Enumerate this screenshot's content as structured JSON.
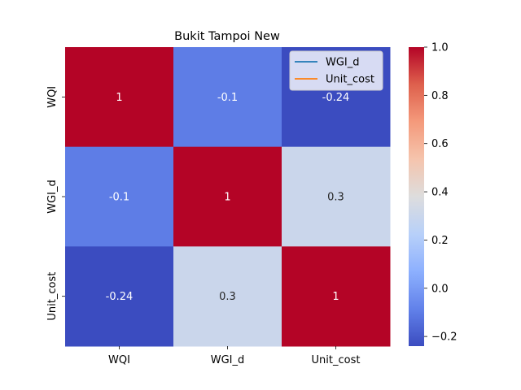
{
  "chart_data": {
    "type": "heatmap",
    "title": "Bukit Tampoi New",
    "xlabel": "",
    "ylabel": "",
    "row_labels": [
      "WQI",
      "WGI_d",
      "Unit_cost"
    ],
    "col_labels": [
      "WQI",
      "WGI_d",
      "Unit_cost"
    ],
    "values": [
      [
        1,
        -0.1,
        -0.24
      ],
      [
        -0.1,
        1,
        0.3
      ],
      [
        -0.24,
        0.3,
        1
      ]
    ],
    "annotations": [
      [
        "1",
        "-0.1",
        "-0.24"
      ],
      [
        "-0.1",
        "1",
        "0.3"
      ],
      [
        "-0.24",
        "0.3",
        "1"
      ]
    ],
    "colormap": "coolwarm",
    "vmin": -0.24,
    "vmax": 1.0,
    "colorbar": {
      "ticks": [
        -0.2,
        0.0,
        0.2,
        0.4,
        0.6,
        0.8,
        1.0
      ],
      "tick_labels": [
        "−0.2",
        "0.0",
        "0.2",
        "0.4",
        "0.6",
        "0.8",
        "1.0"
      ]
    },
    "legend": {
      "placement": "top-right",
      "entries": [
        {
          "name": "WGI_d",
          "color": "#1f77b4"
        },
        {
          "name": "Unit_cost",
          "color": "#ff7f0e"
        }
      ]
    }
  }
}
